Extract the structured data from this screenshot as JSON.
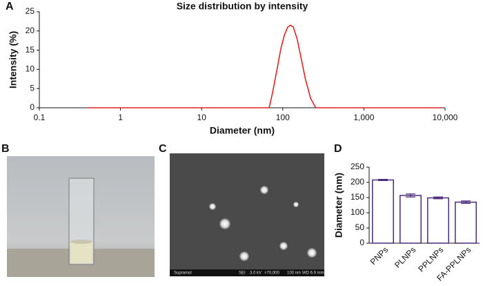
{
  "panel_labels": [
    "A",
    "B",
    "C",
    "D"
  ],
  "sem_image": {
    "labels": [
      "Supramol",
      "SEI",
      "3.0 kV",
      "×70,000",
      "100 nm",
      "WD 6.9 mm"
    ]
  },
  "chart_data": [
    {
      "type": "line",
      "title": "Size distribution by intensity",
      "x_label": "Diameter (nm)",
      "y_label": "Intensity (%)",
      "xscale": "log",
      "xlim": [
        0.1,
        10000
      ],
      "xticks": [
        0.1,
        1,
        10,
        100,
        {
          "value": 1000,
          "label": "1,000"
        },
        {
          "value": 10000,
          "label": "10,000"
        }
      ],
      "ylim": [
        0,
        25
      ],
      "yticks": [
        0,
        5,
        10,
        15,
        20,
        25
      ],
      "series": [
        {
          "name": "Intensity",
          "color": "#e02020",
          "x": [
            0.4,
            1,
            10,
            50,
            68,
            75,
            85,
            95,
            105,
            115,
            125,
            135,
            150,
            170,
            190,
            220,
            255,
            300,
            1000,
            5000,
            9000
          ],
          "values": [
            0,
            0,
            0,
            0,
            0,
            4,
            10,
            15.5,
            19,
            21,
            21.5,
            21,
            18,
            12.5,
            7.5,
            2.5,
            0,
            0,
            0,
            0,
            0
          ]
        }
      ]
    },
    {
      "type": "bar",
      "y_label": "Diameter (nm)",
      "categories": [
        "PNPs",
        "PLNPs",
        "PPLNPs",
        "FA-PPLNPs"
      ],
      "values": [
        208,
        157,
        149,
        135
      ],
      "errors": [
        2,
        5,
        3,
        4
      ],
      "color": "#4b2a7a",
      "ylim": [
        0,
        250
      ],
      "yticks": [
        0,
        50,
        100,
        150,
        200,
        250
      ]
    }
  ]
}
